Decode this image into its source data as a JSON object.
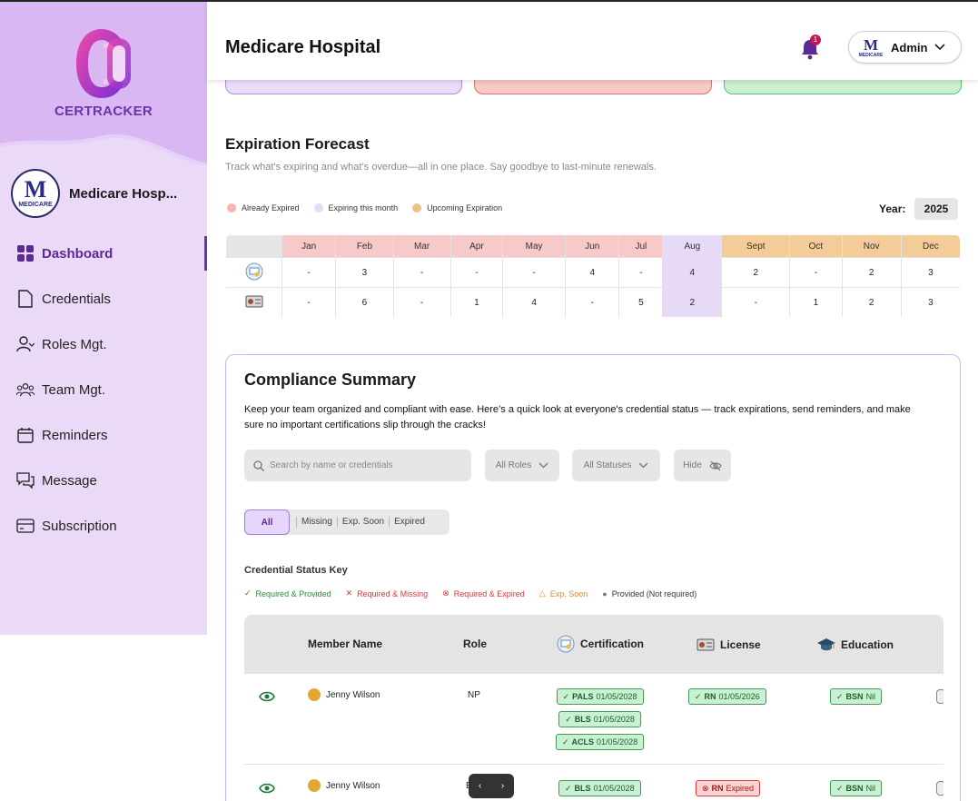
{
  "app": {
    "logo_text": "CERTRACKER"
  },
  "org": {
    "name": "Medicare Hosp...",
    "logo_text": "MEDICARE"
  },
  "nav": [
    {
      "label": "Dashboard",
      "icon": "dashboard-icon",
      "active": true
    },
    {
      "label": "Credentials",
      "icon": "document-icon"
    },
    {
      "label": "Roles Mgt.",
      "icon": "user-icon"
    },
    {
      "label": "Team Mgt.",
      "icon": "team-icon"
    },
    {
      "label": "Reminders",
      "icon": "calendar-icon"
    },
    {
      "label": "Message",
      "icon": "message-icon"
    },
    {
      "label": "Subscription",
      "icon": "card-icon"
    }
  ],
  "header": {
    "title": "Medicare Hospital",
    "notifications": "1",
    "user": "Admin"
  },
  "forecast": {
    "title": "Expiration Forecast",
    "subtitle": "Track what’s expiring and what’s overdue—all in one place. Say goodbye to last-minute renewals.",
    "legend": [
      {
        "label": "Already Expired",
        "color": "#f6b5b5"
      },
      {
        "label": "Expiring this month",
        "color": "#e7daf7"
      },
      {
        "label": "Upcoming Expiration",
        "color": "#f0c28a"
      }
    ],
    "year_label": "Year:",
    "year": "2025",
    "months": [
      "Jan",
      "Feb",
      "Mar",
      "Apr",
      "May",
      "Jun",
      "Jul",
      "Aug",
      "Sept",
      "Oct",
      "Nov",
      "Dec"
    ],
    "rows": [
      {
        "icon": "certificate-icon",
        "values": [
          "-",
          "3",
          "-",
          "-",
          "-",
          "4",
          "-",
          "4",
          "2",
          "-",
          "2",
          "3"
        ]
      },
      {
        "icon": "license-icon",
        "values": [
          "-",
          "6",
          "-",
          "1",
          "4",
          "-",
          "5",
          "2",
          "-",
          "1",
          "2",
          "3"
        ]
      }
    ]
  },
  "compliance": {
    "title": "Compliance Summary",
    "description": "Keep your team organized and compliant with ease. Here’s a quick look at everyone's credential status — track expirations, send reminders, and make sure no important certifications slip through the cracks!",
    "search_placeholder": "Search by name or credentials",
    "roles_filter": "All Roles",
    "status_filter": "All Statuses",
    "hide_label": "Hide",
    "tabs": [
      "All",
      "Missing",
      "Exp. Soon",
      "Expired"
    ],
    "key_title": "Credential Status Key",
    "key": [
      {
        "symbol": "✓",
        "label": "Required & Provided",
        "color": "#2e8b3a"
      },
      {
        "symbol": "✕",
        "label": "Required & Missing",
        "color": "#d33a3a"
      },
      {
        "symbol": "⊗",
        "label": "Required & Expired",
        "color": "#d33a3a"
      },
      {
        "symbol": "△",
        "label": "Exp. Soon",
        "color": "#e08a1e"
      },
      {
        "symbol": "●",
        "label": "Provided (Not required)",
        "color": "#777777"
      }
    ],
    "columns": [
      "Member Name",
      "Role",
      "Certification",
      "License",
      "Education"
    ],
    "members": [
      {
        "name": "Jenny Wilson",
        "role": "NP",
        "certs": [
          {
            "code": "PALS",
            "date": "01/05/2028"
          },
          {
            "code": "BLS",
            "date": "01/05/2028"
          },
          {
            "code": "ACLS",
            "date": "01/05/2028"
          }
        ],
        "license": {
          "code": "RN",
          "date": "01/05/2026"
        },
        "education": {
          "code": "BSN",
          "date": "Nil"
        }
      },
      {
        "name": "Jenny Wilson",
        "role": "E",
        "certs": [
          {
            "code": "BLS",
            "date": "01/05/2028"
          }
        ],
        "license": {
          "code": "RN",
          "date": "Expired"
        },
        "education": {
          "code": "BSN",
          "date": "Nil"
        }
      }
    ]
  },
  "pager": {
    "prev": "‹",
    "next": "›"
  }
}
